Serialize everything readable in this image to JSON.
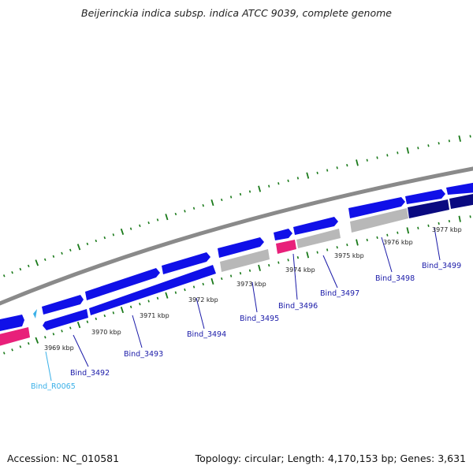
{
  "title": "Beijerinckia indica subsp. indica ATCC 9039, complete genome",
  "footer": {
    "accession": "Accession: NC_010581",
    "topology": "Topology: circular; Length: 4,170,153 bp; Genes: 3,631"
  },
  "kbp_labels": [
    "3969 kbp",
    "3970 kbp",
    "3971 kbp",
    "3972 kbp",
    "3973 kbp",
    "3974 kbp",
    "3975 kbp",
    "3976 kbp",
    "3977 kbp"
  ],
  "gene_labels": [
    "Bind_R0065",
    "Bind_3492",
    "Bind_3493",
    "Bind_3494",
    "Bind_3495",
    "Bind_3496",
    "Bind_3497",
    "Bind_3498",
    "Bind_3499"
  ],
  "colors": {
    "cds": "#1010e8",
    "cds_dark": "#0a0a80",
    "pseudo": "#b8b8b8",
    "rrna": "#e8207a",
    "trna": "#3ab0e8",
    "backbone": "#888888",
    "tick": "#1a7a1a"
  }
}
